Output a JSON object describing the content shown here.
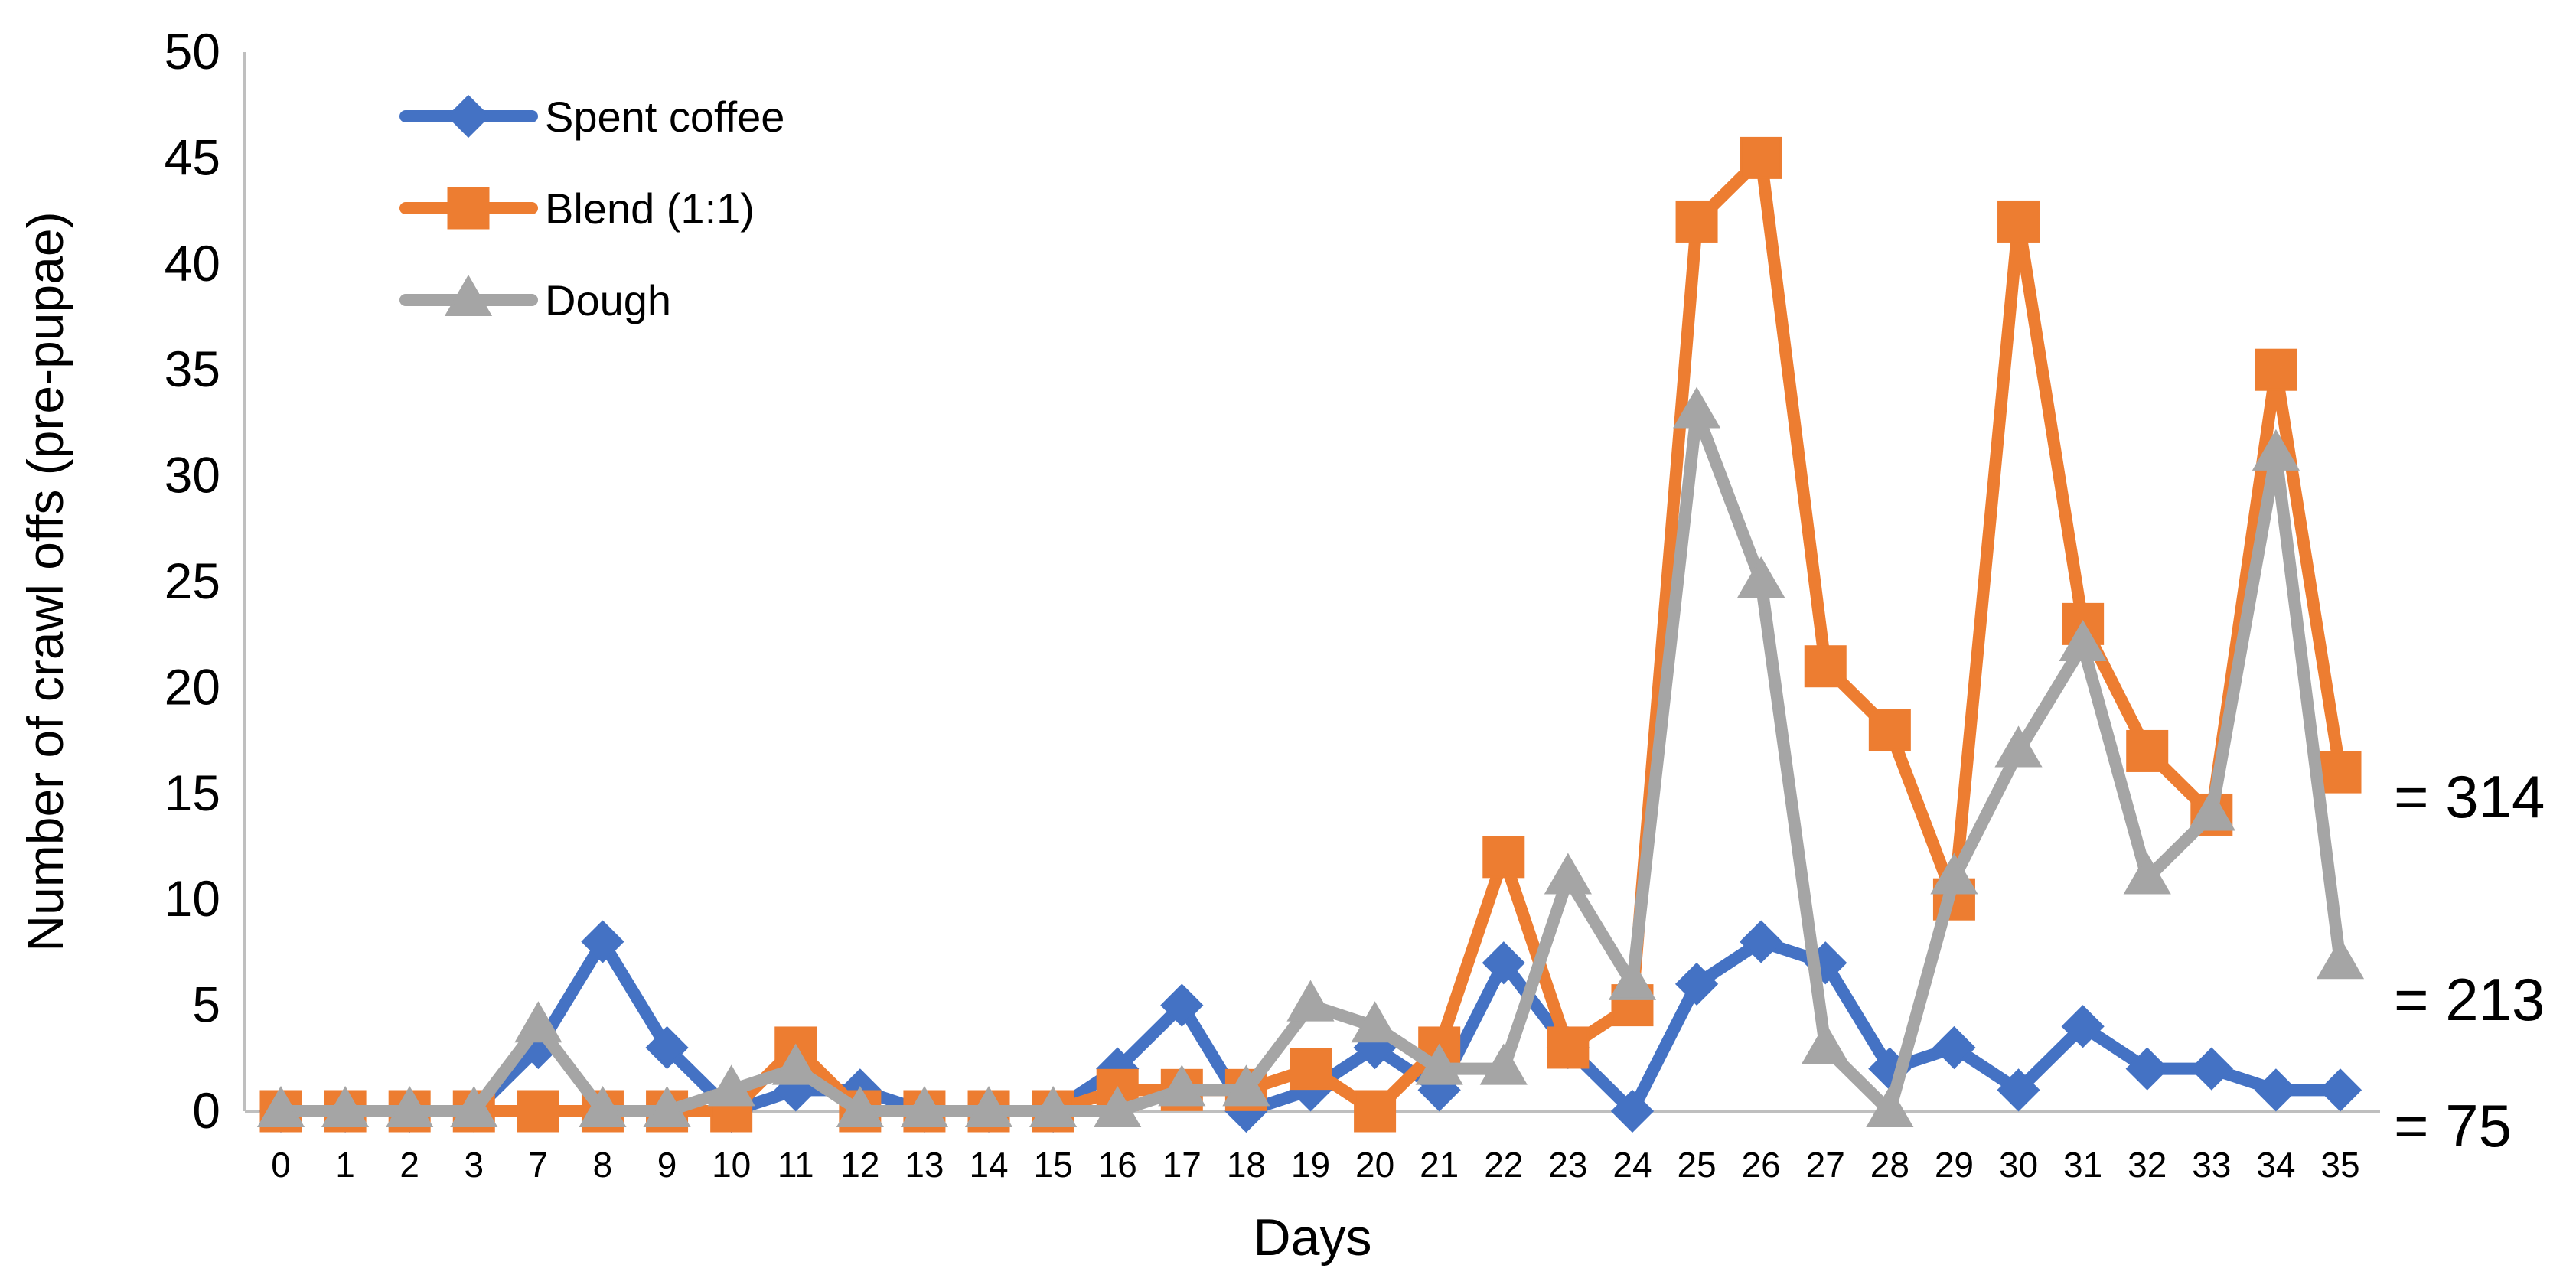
{
  "chart_data": {
    "type": "line",
    "title": "",
    "xlabel": "Days",
    "ylabel": "Number of crawl offs (pre-pupae)",
    "ylim": [
      0,
      50
    ],
    "yticks": [
      0,
      5,
      10,
      15,
      20,
      25,
      30,
      35,
      40,
      45,
      50
    ],
    "grid": false,
    "legend_position": "top-left",
    "categories": [
      "0",
      "1",
      "2",
      "3",
      "7",
      "8",
      "9",
      "10",
      "11",
      "12",
      "13",
      "14",
      "15",
      "16",
      "17",
      "18",
      "19",
      "20",
      "21",
      "22",
      "23",
      "24",
      "25",
      "26",
      "27",
      "28",
      "29",
      "30",
      "31",
      "32",
      "33",
      "34",
      "35"
    ],
    "series": [
      {
        "name": "Spent coffee",
        "color": "#4472C4",
        "marker": "diamond",
        "values": [
          0,
          0,
          0,
          0,
          3,
          8,
          3,
          0,
          1,
          1,
          0,
          0,
          0,
          2,
          5,
          0,
          1,
          3,
          1,
          7,
          3,
          0,
          6,
          8,
          7,
          2,
          3,
          1,
          4,
          2,
          2,
          1,
          1
        ],
        "total_label": "= 75"
      },
      {
        "name": "Blend (1:1)",
        "color": "#ED7D31",
        "marker": "square",
        "values": [
          0,
          0,
          0,
          0,
          0,
          0,
          0,
          0,
          3,
          0,
          0,
          0,
          0,
          1,
          1,
          1,
          2,
          0,
          3,
          12,
          3,
          5,
          42,
          45,
          21,
          18,
          10,
          42,
          23,
          17,
          14,
          35,
          16
        ],
        "total_label": "= 314"
      },
      {
        "name": "Dough",
        "color": "#A5A5A5",
        "marker": "triangle",
        "values": [
          0,
          0,
          0,
          0,
          4,
          0,
          0,
          1,
          2,
          0,
          0,
          0,
          0,
          0,
          1,
          1,
          5,
          4,
          2,
          2,
          11,
          6,
          33,
          25,
          3,
          0,
          11,
          17,
          22,
          11,
          14,
          31,
          7
        ],
        "total_label": "= 213"
      }
    ]
  }
}
